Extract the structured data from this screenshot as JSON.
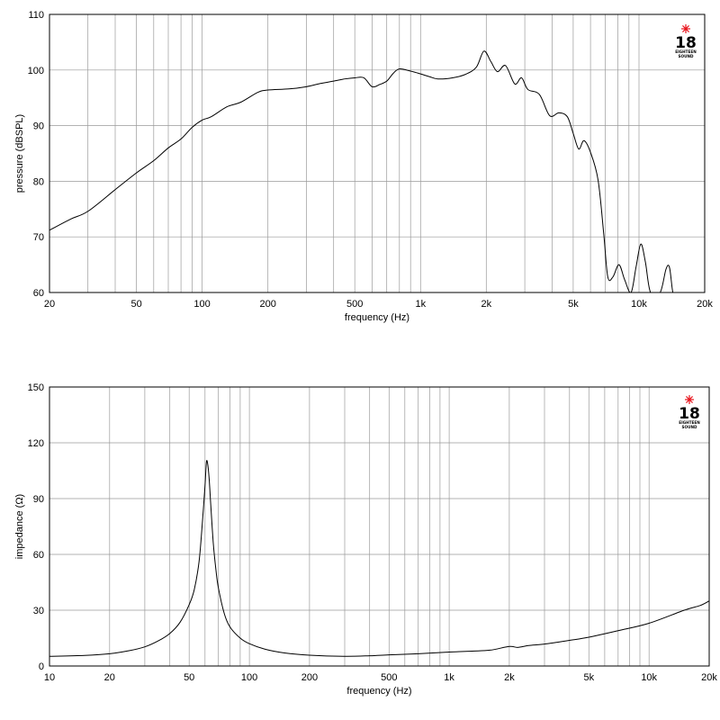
{
  "logo": {
    "number": "18",
    "line1": "EIGHTEEN",
    "line2": "SOUND",
    "star_color": "#e8141c"
  },
  "chart_data": [
    {
      "type": "line",
      "title": "",
      "xlabel": "frequency (Hz)",
      "ylabel": "pressure (dBSPL)",
      "xscale": "log",
      "xlim": [
        20,
        20000
      ],
      "ylim": [
        60,
        110
      ],
      "yticks": [
        60,
        70,
        80,
        90,
        100,
        110
      ],
      "xticks": [
        {
          "v": 20,
          "label": "20"
        },
        {
          "v": 50,
          "label": "50"
        },
        {
          "v": 100,
          "label": "100"
        },
        {
          "v": 200,
          "label": "200"
        },
        {
          "v": 500,
          "label": "500"
        },
        {
          "v": 1000,
          "label": "1k"
        },
        {
          "v": 2000,
          "label": "2k"
        },
        {
          "v": 5000,
          "label": "5k"
        },
        {
          "v": 10000,
          "label": "10k"
        },
        {
          "v": 20000,
          "label": "20k"
        }
      ],
      "grid": true,
      "series": [
        {
          "points": [
            [
              20,
              71.2
            ],
            [
              25,
              73.2
            ],
            [
              30,
              74.6
            ],
            [
              40,
              78.5
            ],
            [
              50,
              81.5
            ],
            [
              60,
              83.7
            ],
            [
              70,
              86
            ],
            [
              80,
              87.6
            ],
            [
              90,
              89.7
            ],
            [
              100,
              91
            ],
            [
              110,
              91.6
            ],
            [
              130,
              93.4
            ],
            [
              150,
              94.2
            ],
            [
              180,
              96
            ],
            [
              200,
              96.4
            ],
            [
              250,
              96.6
            ],
            [
              300,
              97
            ],
            [
              350,
              97.6
            ],
            [
              400,
              98
            ],
            [
              450,
              98.4
            ],
            [
              500,
              98.6
            ],
            [
              550,
              98.6
            ],
            [
              600,
              97
            ],
            [
              650,
              97.4
            ],
            [
              700,
              98
            ],
            [
              750,
              99.4
            ],
            [
              800,
              100.2
            ],
            [
              900,
              99.8
            ],
            [
              1000,
              99.3
            ],
            [
              1100,
              98.8
            ],
            [
              1200,
              98.4
            ],
            [
              1400,
              98.6
            ],
            [
              1600,
              99.2
            ],
            [
              1800,
              100.5
            ],
            [
              1950,
              103.4
            ],
            [
              2100,
              101.5
            ],
            [
              2250,
              99.7
            ],
            [
              2450,
              100.8
            ],
            [
              2700,
              97.5
            ],
            [
              2900,
              98.6
            ],
            [
              3100,
              96.5
            ],
            [
              3500,
              95.6
            ],
            [
              3900,
              91.8
            ],
            [
              4300,
              92.3
            ],
            [
              4700,
              91.6
            ],
            [
              5000,
              88.6
            ],
            [
              5300,
              85.8
            ],
            [
              5600,
              87.3
            ],
            [
              6000,
              85.2
            ],
            [
              6500,
              80.2
            ],
            [
              6900,
              70.5
            ],
            [
              7200,
              62.8
            ],
            [
              7600,
              62.8
            ],
            [
              8100,
              65
            ],
            [
              8600,
              62.3
            ],
            [
              9200,
              60
            ],
            [
              9700,
              64.6
            ],
            [
              10200,
              68.7
            ],
            [
              10700,
              65.5
            ],
            [
              11300,
              60
            ],
            [
              12500,
              60
            ],
            [
              13300,
              64.2
            ],
            [
              13800,
              64.5
            ],
            [
              14300,
              60
            ],
            [
              14800,
              60
            ]
          ]
        }
      ]
    },
    {
      "type": "line",
      "title": "",
      "xlabel": "frequency (Hz)",
      "ylabel": "impedance (Ω)",
      "xscale": "log",
      "xlim": [
        10,
        20000
      ],
      "ylim": [
        0,
        150
      ],
      "yticks": [
        0,
        30,
        60,
        90,
        120,
        150
      ],
      "xticks": [
        {
          "v": 10,
          "label": "10"
        },
        {
          "v": 20,
          "label": "20"
        },
        {
          "v": 50,
          "label": "50"
        },
        {
          "v": 100,
          "label": "100"
        },
        {
          "v": 200,
          "label": "200"
        },
        {
          "v": 500,
          "label": "500"
        },
        {
          "v": 1000,
          "label": "1k"
        },
        {
          "v": 2000,
          "label": "2k"
        },
        {
          "v": 5000,
          "label": "5k"
        },
        {
          "v": 10000,
          "label": "10k"
        },
        {
          "v": 20000,
          "label": "20k"
        }
      ],
      "grid": true,
      "series": [
        {
          "points": [
            [
              10,
              5.2
            ],
            [
              15,
              5.7
            ],
            [
              20,
              6.6
            ],
            [
              25,
              8.2
            ],
            [
              30,
              10.3
            ],
            [
              35,
              13.5
            ],
            [
              40,
              17.5
            ],
            [
              45,
              23.5
            ],
            [
              50,
              33
            ],
            [
              53,
              41
            ],
            [
              56,
              56
            ],
            [
              58,
              75
            ],
            [
              60,
              97
            ],
            [
              61,
              109.8
            ],
            [
              62,
              108
            ],
            [
              63,
              100
            ],
            [
              64,
              88
            ],
            [
              66,
              66
            ],
            [
              68,
              52
            ],
            [
              70,
              42
            ],
            [
              75,
              28
            ],
            [
              80,
              21
            ],
            [
              90,
              15
            ],
            [
              100,
              12
            ],
            [
              120,
              9
            ],
            [
              150,
              7
            ],
            [
              200,
              5.8
            ],
            [
              300,
              5.2
            ],
            [
              400,
              5.5
            ],
            [
              500,
              6
            ],
            [
              700,
              6.6
            ],
            [
              1000,
              7.5
            ],
            [
              1300,
              8
            ],
            [
              1600,
              8.5
            ],
            [
              2000,
              10.5
            ],
            [
              2200,
              10
            ],
            [
              2500,
              11
            ],
            [
              3000,
              11.8
            ],
            [
              4000,
              13.8
            ],
            [
              5000,
              15.5
            ],
            [
              7000,
              19
            ],
            [
              10000,
              23
            ],
            [
              15000,
              30
            ],
            [
              18000,
              32.5
            ],
            [
              20000,
              35
            ]
          ]
        }
      ]
    }
  ]
}
